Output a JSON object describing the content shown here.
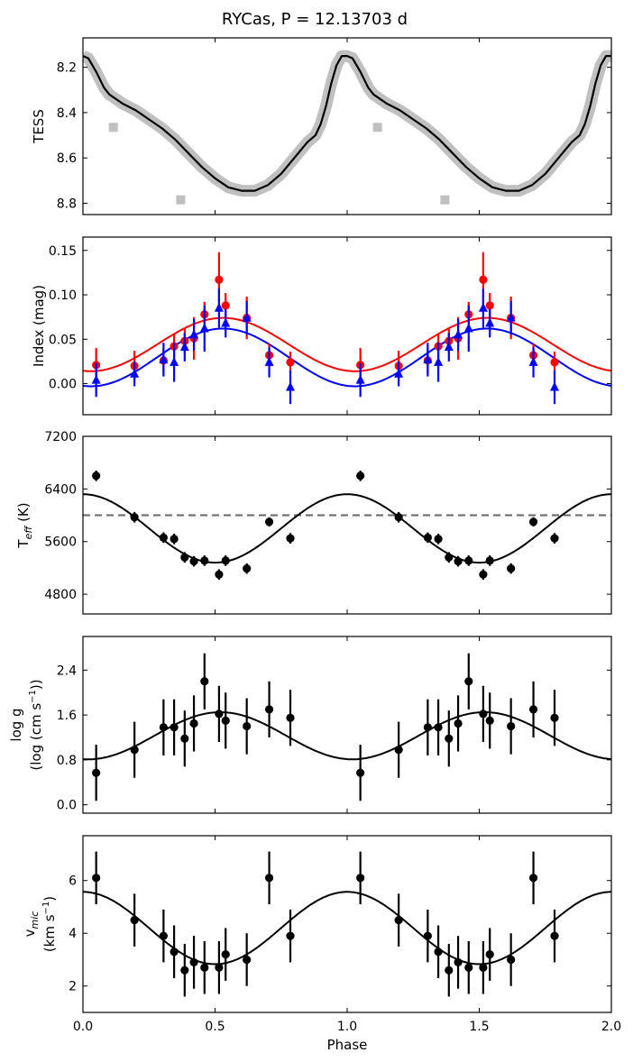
{
  "title": "RYCas, P = 12.13703 d",
  "xlabel": "Phase",
  "chart_data": [
    {
      "type": "line",
      "name": "tess",
      "ylabel": "TESS",
      "xlim": [
        0,
        2
      ],
      "ylim": [
        8.85,
        8.07
      ],
      "inverted": true,
      "xticks": [
        "0.0",
        "0.5",
        "1.0",
        "1.5",
        "2.0"
      ],
      "yticks": [
        8.2,
        8.4,
        8.6,
        8.8
      ],
      "ytick_labels": [
        "8.2",
        "8.4",
        "8.6",
        "8.8"
      ],
      "curve": {
        "x": [
          0,
          0.02,
          0.05,
          0.08,
          0.1,
          0.15,
          0.2,
          0.25,
          0.3,
          0.35,
          0.4,
          0.45,
          0.5,
          0.55,
          0.6,
          0.65,
          0.7,
          0.75,
          0.8,
          0.85,
          0.88,
          0.9,
          0.92,
          0.94,
          0.96,
          0.98,
          1.0
        ],
        "y": [
          8.15,
          8.16,
          8.22,
          8.29,
          8.32,
          8.36,
          8.39,
          8.43,
          8.47,
          8.52,
          8.58,
          8.64,
          8.69,
          8.73,
          8.745,
          8.745,
          8.72,
          8.67,
          8.6,
          8.53,
          8.5,
          8.45,
          8.37,
          8.27,
          8.19,
          8.15,
          8.15
        ]
      },
      "outliers": [
        {
          "x": 0.115,
          "y": 8.465
        },
        {
          "x": 0.37,
          "y": 8.785
        },
        {
          "x": 1.115,
          "y": 8.465
        },
        {
          "x": 1.37,
          "y": 8.785
        }
      ],
      "colors": {
        "band": "#c0c0c0",
        "line": "#000000"
      }
    },
    {
      "type": "scatter",
      "name": "index",
      "ylabel": "Index (mag)",
      "xlim": [
        0,
        2
      ],
      "ylim": [
        -0.035,
        0.165
      ],
      "yticks": [
        0.0,
        0.05,
        0.1,
        0.15
      ],
      "ytick_labels": [
        "0.00",
        "0.05",
        "0.10",
        "0.15"
      ],
      "series": [
        {
          "name": "red",
          "color": "#ff0000",
          "marker": "circle",
          "x": [
            0.05,
            0.195,
            0.305,
            0.345,
            0.385,
            0.42,
            0.46,
            0.515,
            0.54,
            0.62,
            0.705,
            0.785
          ],
          "y": [
            0.021,
            0.02,
            0.026,
            0.042,
            0.048,
            0.051,
            0.078,
            0.117,
            0.088,
            0.074,
            0.032,
            0.024
          ],
          "err": [
            0.019,
            0.017,
            0.014,
            0.014,
            0.014,
            0.024,
            0.014,
            0.031,
            0.014,
            0.024,
            0.013,
            0.012
          ],
          "fit": {
            "mean": 0.044,
            "amp": 0.03,
            "peak": 0.53
          }
        },
        {
          "name": "blue",
          "color": "#0000ff",
          "marker": "triangle",
          "x": [
            0.05,
            0.195,
            0.305,
            0.345,
            0.385,
            0.42,
            0.46,
            0.515,
            0.54,
            0.62,
            0.705,
            0.785
          ],
          "y": [
            0.004,
            0.011,
            0.027,
            0.024,
            0.041,
            0.055,
            0.062,
            0.085,
            0.068,
            0.074,
            0.024,
            -0.004
          ],
          "err": [
            0.019,
            0.014,
            0.019,
            0.022,
            0.016,
            0.018,
            0.026,
            0.022,
            0.016,
            0.019,
            0.017,
            0.019
          ],
          "fit": {
            "mean": 0.0295,
            "amp": 0.0325,
            "peak": 0.53
          }
        }
      ]
    },
    {
      "type": "scatter",
      "name": "teff",
      "ylabel": "T_eff (K)",
      "ylabel_main": "T",
      "ylabel_sub": "eff",
      "ylabel_rest": " (K)",
      "xlim": [
        0,
        2
      ],
      "ylim": [
        4500,
        7200
      ],
      "yticks": [
        4800,
        5600,
        6400,
        7200
      ],
      "ytick_labels": [
        "4800",
        "5600",
        "6400",
        "7200"
      ],
      "hline": 6000,
      "x": [
        0.05,
        0.195,
        0.305,
        0.345,
        0.385,
        0.42,
        0.46,
        0.515,
        0.54,
        0.62,
        0.705,
        0.785
      ],
      "y": [
        6600,
        5970,
        5660,
        5640,
        5360,
        5300,
        5310,
        5100,
        5310,
        5190,
        5900,
        5650
      ],
      "err": [
        80,
        80,
        80,
        80,
        80,
        80,
        80,
        80,
        80,
        80,
        70,
        80
      ],
      "fit": {
        "mean": 5800,
        "amp": 520,
        "peak": 0.0
      },
      "colors": {
        "point": "#000000",
        "hline": "#666666"
      }
    },
    {
      "type": "scatter",
      "name": "logg",
      "ylabel_line1": "log g",
      "ylabel_line2_pre": "(log (cm s",
      "ylabel_line2_sup": "−1",
      "ylabel_line2_post": "))",
      "xlim": [
        0,
        2
      ],
      "ylim": [
        -0.15,
        3.0
      ],
      "yticks": [
        0.0,
        0.8,
        1.6,
        2.4
      ],
      "ytick_labels": [
        "0.0",
        "0.8",
        "1.6",
        "2.4"
      ],
      "x": [
        0.05,
        0.195,
        0.305,
        0.345,
        0.385,
        0.42,
        0.46,
        0.515,
        0.54,
        0.62,
        0.705,
        0.785
      ],
      "y": [
        0.57,
        0.98,
        1.38,
        1.38,
        1.18,
        1.45,
        2.2,
        1.62,
        1.5,
        1.4,
        1.7,
        1.55
      ],
      "err": [
        0.5,
        0.5,
        0.5,
        0.5,
        0.5,
        0.5,
        0.5,
        0.5,
        0.5,
        0.5,
        0.5,
        0.5
      ],
      "fit": {
        "mean": 1.23,
        "amp": 0.42,
        "peak": 0.52
      }
    },
    {
      "type": "scatter",
      "name": "vmic",
      "ylabel_line1_main": "v",
      "ylabel_line1_sub": "mic",
      "ylabel_line2_pre": "(km s",
      "ylabel_line2_sup": "−1",
      "ylabel_line2_post": ")",
      "xlim": [
        0,
        2
      ],
      "ylim": [
        1.0,
        7.7
      ],
      "yticks": [
        2,
        4,
        6
      ],
      "ytick_labels": [
        "2",
        "4",
        "6"
      ],
      "x": [
        0.05,
        0.195,
        0.305,
        0.345,
        0.385,
        0.42,
        0.46,
        0.515,
        0.54,
        0.62,
        0.705,
        0.785
      ],
      "y": [
        6.1,
        4.5,
        3.9,
        3.3,
        2.6,
        2.9,
        2.7,
        2.7,
        3.2,
        3.0,
        6.1,
        3.9
      ],
      "err": [
        1.0,
        1.0,
        1.0,
        1.0,
        1.0,
        1.0,
        1.0,
        1.0,
        1.0,
        1.0,
        1.0,
        1.0
      ],
      "fit": {
        "mean": 4.2,
        "amp": 1.37,
        "peak": 0.0
      }
    }
  ]
}
